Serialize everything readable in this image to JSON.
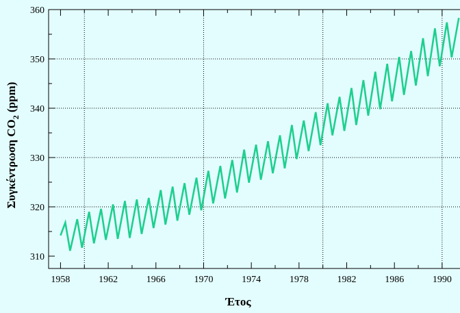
{
  "chart_data": {
    "type": "line",
    "title": "",
    "xlabel": "Έτος",
    "ylabel_main": "Συγκέντρωση CO",
    "ylabel_sub": "2",
    "ylabel_unit": " (ppm)",
    "xlim": [
      1957.0,
      1991.5
    ],
    "ylim": [
      307.5,
      360
    ],
    "x_ticks": [
      1958,
      1962,
      1966,
      1970,
      1974,
      1978,
      1982,
      1986,
      1990
    ],
    "x_tick_labels": [
      "1958",
      "1962",
      "1966",
      "1970",
      "1974",
      "1978",
      "1982",
      "1986",
      "1990"
    ],
    "x_minor_ticks": [
      1960,
      1964,
      1968,
      1972,
      1976,
      1980,
      1984,
      1988
    ],
    "y_ticks": [
      310,
      320,
      330,
      340,
      350,
      360
    ],
    "y_tick_labels": [
      "310",
      "320",
      "330",
      "340",
      "350",
      "360"
    ],
    "y_minor_ticks": [
      315,
      325,
      335,
      345,
      355
    ],
    "grid_x": [
      1960,
      1970,
      1980,
      1990
    ],
    "grid_y": [
      320,
      330,
      340,
      350
    ],
    "line_color": "#1ecf8f",
    "background": "#e3fdfe",
    "series": [
      {
        "x": [
          1958.0,
          1958.4,
          1958.8,
          1959.4,
          1959.8,
          1960.4,
          1960.8,
          1961.4,
          1961.8,
          1962.4,
          1962.8,
          1963.4,
          1963.8,
          1964.4,
          1964.8,
          1965.4,
          1965.8,
          1966.4,
          1966.8,
          1967.4,
          1967.8,
          1968.4,
          1968.8,
          1969.4,
          1969.8,
          1970.4,
          1970.8,
          1971.4,
          1971.8,
          1972.4,
          1972.8,
          1973.4,
          1973.8,
          1974.4,
          1974.8,
          1975.4,
          1975.8,
          1976.4,
          1976.8,
          1977.4,
          1977.8,
          1978.4,
          1978.8,
          1979.4,
          1979.8,
          1980.4,
          1980.8,
          1981.4,
          1981.8,
          1982.4,
          1982.8,
          1983.4,
          1983.8,
          1984.4,
          1984.8,
          1985.4,
          1985.8,
          1986.4,
          1986.8,
          1987.4,
          1987.8,
          1988.4,
          1988.8,
          1989.4,
          1989.8,
          1990.4,
          1990.8,
          1991.4
        ],
        "y": [
          314.2,
          316.8,
          311.1,
          317.5,
          311.7,
          319.0,
          312.6,
          319.6,
          313.3,
          320.5,
          313.5,
          321.2,
          313.7,
          321.5,
          314.5,
          321.8,
          315.7,
          323.4,
          316.4,
          324.1,
          317.2,
          324.8,
          318.4,
          325.9,
          319.3,
          327.3,
          320.7,
          328.3,
          321.7,
          329.5,
          322.9,
          331.6,
          324.9,
          332.6,
          325.5,
          333.3,
          326.8,
          334.5,
          327.8,
          336.6,
          329.7,
          337.5,
          331.3,
          339.2,
          332.5,
          341.0,
          334.5,
          342.3,
          335.4,
          344.1,
          336.6,
          345.7,
          338.5,
          347.4,
          339.8,
          349.0,
          341.4,
          350.4,
          342.7,
          351.6,
          344.6,
          354.2,
          346.5,
          356.2,
          348.5,
          357.4,
          350.3,
          358.3
        ]
      }
    ]
  }
}
